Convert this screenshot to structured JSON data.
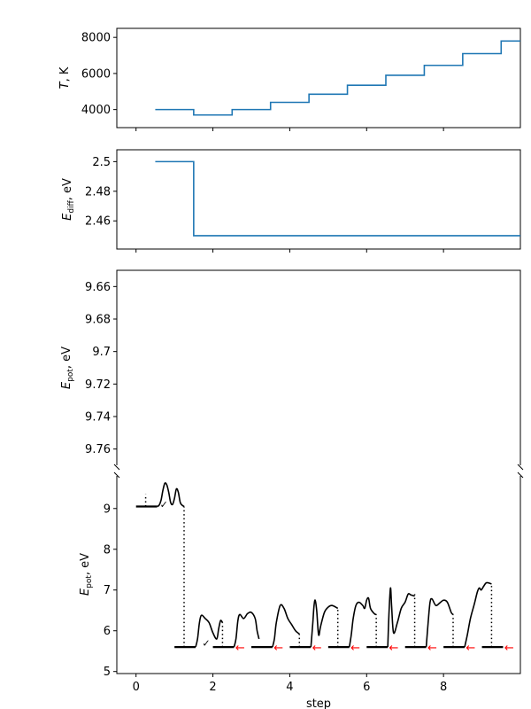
{
  "chart_data": [
    {
      "type": "line",
      "step": true,
      "ylabel": "T, K",
      "xlim": [
        -0.5,
        10
      ],
      "ylim": [
        3000,
        8500
      ],
      "yticks": [
        4000,
        6000,
        8000
      ],
      "series": [
        {
          "color": "#1f77b4",
          "x": [
            0.5,
            1.5,
            2.5,
            3.5,
            4.5,
            5.5,
            6.5,
            7.5,
            8.5,
            9.5,
            10
          ],
          "y": [
            4000,
            3700,
            4000,
            4400,
            4850,
            5350,
            5900,
            6450,
            7100,
            7800,
            7800
          ]
        }
      ]
    },
    {
      "type": "line",
      "step": true,
      "ylabel": "E_diff, eV",
      "xlim": [
        -0.5,
        10
      ],
      "ylim": [
        2.441,
        2.508
      ],
      "yticks": [
        2.46,
        2.48,
        2.5
      ],
      "series": [
        {
          "color": "#1f77b4",
          "x": [
            0.5,
            1.5,
            10
          ],
          "y": [
            2.5,
            2.45,
            2.45
          ]
        }
      ]
    },
    {
      "type": "line",
      "ylabel": "E_pot, eV",
      "inverted": true,
      "xlim": [
        -0.5,
        10
      ],
      "ylim": [
        9.65,
        9.77
      ],
      "yticks": [
        9.66,
        9.68,
        9.7,
        9.72,
        9.74,
        9.76
      ],
      "series": []
    },
    {
      "type": "line",
      "xlabel": "step",
      "ylabel": "E_pot, eV",
      "xlim": [
        -0.5,
        10
      ],
      "ylim": [
        4.95,
        9.8
      ],
      "xticks": [
        0,
        2,
        4,
        6,
        8
      ],
      "yticks": [
        5,
        6,
        7,
        8,
        9
      ],
      "baselines": [
        {
          "x0": 0.0,
          "x1": 0.55,
          "y": 9.05
        },
        {
          "x0": 1.0,
          "x1": 1.55,
          "y": 5.6
        },
        {
          "x0": 2.0,
          "x1": 2.55,
          "y": 5.6
        },
        {
          "x0": 3.0,
          "x1": 3.55,
          "y": 5.6
        },
        {
          "x0": 4.0,
          "x1": 4.55,
          "y": 5.6
        },
        {
          "x0": 5.0,
          "x1": 5.55,
          "y": 5.6
        },
        {
          "x0": 6.0,
          "x1": 6.55,
          "y": 5.6
        },
        {
          "x0": 7.0,
          "x1": 7.55,
          "y": 5.6
        },
        {
          "x0": 8.0,
          "x1": 8.55,
          "y": 5.6
        },
        {
          "x0": 9.0,
          "x1": 9.55,
          "y": 5.6
        }
      ],
      "dotted": [
        {
          "x": 0.25,
          "y0": 9.05,
          "y1": 9.35
        },
        {
          "x": 1.25,
          "y0": 5.6,
          "y1": 9.05
        },
        {
          "x": 2.25,
          "y0": 5.6,
          "y1": 6.2
        },
        {
          "x": 4.25,
          "y0": 5.6,
          "y1": 5.92
        },
        {
          "x": 5.25,
          "y0": 5.6,
          "y1": 6.55
        },
        {
          "x": 6.25,
          "y0": 5.6,
          "y1": 6.4
        },
        {
          "x": 7.25,
          "y0": 5.6,
          "y1": 6.9
        },
        {
          "x": 8.25,
          "y0": 5.6,
          "y1": 6.4
        },
        {
          "x": 9.25,
          "y0": 5.6,
          "y1": 7.15
        }
      ],
      "curves": [
        [
          [
            0.55,
            9.05
          ],
          [
            0.6,
            9.08
          ],
          [
            0.65,
            9.2
          ],
          [
            0.7,
            9.45
          ],
          [
            0.75,
            9.62
          ],
          [
            0.8,
            9.58
          ],
          [
            0.85,
            9.4
          ],
          [
            0.9,
            9.15
          ],
          [
            0.95,
            9.1
          ],
          [
            1.0,
            9.25
          ],
          [
            1.05,
            9.48
          ],
          [
            1.1,
            9.4
          ],
          [
            1.15,
            9.15
          ],
          [
            1.2,
            9.08
          ],
          [
            1.25,
            9.05
          ]
        ],
        [
          [
            1.55,
            5.6
          ],
          [
            1.6,
            5.8
          ],
          [
            1.65,
            6.2
          ],
          [
            1.7,
            6.38
          ],
          [
            1.8,
            6.3
          ],
          [
            1.9,
            6.2
          ],
          [
            2.0,
            5.95
          ],
          [
            2.1,
            5.8
          ],
          [
            2.15,
            6.05
          ],
          [
            2.2,
            6.25
          ],
          [
            2.25,
            6.2
          ]
        ],
        [
          [
            2.55,
            5.6
          ],
          [
            2.6,
            5.8
          ],
          [
            2.65,
            6.25
          ],
          [
            2.7,
            6.4
          ],
          [
            2.8,
            6.3
          ],
          [
            2.9,
            6.42
          ],
          [
            3.0,
            6.45
          ],
          [
            3.1,
            6.3
          ],
          [
            3.15,
            6.0
          ],
          [
            3.2,
            5.8
          ]
        ],
        [
          [
            3.55,
            5.6
          ],
          [
            3.6,
            5.8
          ],
          [
            3.65,
            6.2
          ],
          [
            3.75,
            6.62
          ],
          [
            3.85,
            6.55
          ],
          [
            3.95,
            6.3
          ],
          [
            4.05,
            6.15
          ],
          [
            4.15,
            6.0
          ],
          [
            4.25,
            5.92
          ]
        ],
        [
          [
            4.55,
            5.6
          ],
          [
            4.6,
            6.2
          ],
          [
            4.63,
            6.6
          ],
          [
            4.66,
            6.75
          ],
          [
            4.7,
            6.5
          ],
          [
            4.75,
            5.9
          ],
          [
            4.8,
            6.1
          ],
          [
            4.9,
            6.45
          ],
          [
            5.0,
            6.58
          ],
          [
            5.1,
            6.62
          ],
          [
            5.25,
            6.55
          ]
        ],
        [
          [
            5.55,
            5.6
          ],
          [
            5.6,
            5.9
          ],
          [
            5.65,
            6.3
          ],
          [
            5.72,
            6.62
          ],
          [
            5.8,
            6.7
          ],
          [
            5.9,
            6.62
          ],
          [
            5.95,
            6.55
          ],
          [
            6.0,
            6.75
          ],
          [
            6.05,
            6.8
          ],
          [
            6.1,
            6.55
          ],
          [
            6.2,
            6.42
          ],
          [
            6.25,
            6.4
          ]
        ],
        [
          [
            6.55,
            5.6
          ],
          [
            6.58,
            6.4
          ],
          [
            6.62,
            7.05
          ],
          [
            6.65,
            6.6
          ],
          [
            6.7,
            5.95
          ],
          [
            6.8,
            6.2
          ],
          [
            6.9,
            6.55
          ],
          [
            7.0,
            6.7
          ],
          [
            7.08,
            6.9
          ],
          [
            7.15,
            6.88
          ],
          [
            7.25,
            6.85
          ]
        ],
        [
          [
            7.55,
            5.6
          ],
          [
            7.6,
            6.2
          ],
          [
            7.65,
            6.7
          ],
          [
            7.7,
            6.78
          ],
          [
            7.8,
            6.62
          ],
          [
            7.9,
            6.68
          ],
          [
            8.0,
            6.75
          ],
          [
            8.1,
            6.7
          ],
          [
            8.2,
            6.45
          ],
          [
            8.25,
            6.4
          ]
        ],
        [
          [
            8.55,
            5.6
          ],
          [
            8.62,
            5.9
          ],
          [
            8.7,
            6.3
          ],
          [
            8.8,
            6.65
          ],
          [
            8.88,
            6.95
          ],
          [
            8.93,
            7.05
          ],
          [
            8.98,
            7.0
          ],
          [
            9.05,
            7.1
          ],
          [
            9.12,
            7.18
          ],
          [
            9.25,
            7.15
          ]
        ]
      ],
      "checks": [
        {
          "x": 0.62,
          "y": 9.1,
          "mark": "✓"
        },
        {
          "x": 1.72,
          "y": 5.7,
          "mark": "✓"
        }
      ],
      "arrows": [
        {
          "x": 2.72,
          "y": 5.6,
          "mark": "←",
          "color": "#ff0000"
        },
        {
          "x": 3.72,
          "y": 5.6,
          "mark": "←",
          "color": "#ff0000"
        },
        {
          "x": 4.72,
          "y": 5.6,
          "mark": "←",
          "color": "#ff0000"
        },
        {
          "x": 5.72,
          "y": 5.6,
          "mark": "←",
          "color": "#ff0000"
        },
        {
          "x": 6.72,
          "y": 5.6,
          "mark": "←",
          "color": "#ff0000"
        },
        {
          "x": 7.72,
          "y": 5.6,
          "mark": "←",
          "color": "#ff0000"
        },
        {
          "x": 8.72,
          "y": 5.6,
          "mark": "←",
          "color": "#ff0000"
        },
        {
          "x": 9.72,
          "y": 5.6,
          "mark": "←",
          "color": "#ff0000"
        }
      ]
    }
  ]
}
